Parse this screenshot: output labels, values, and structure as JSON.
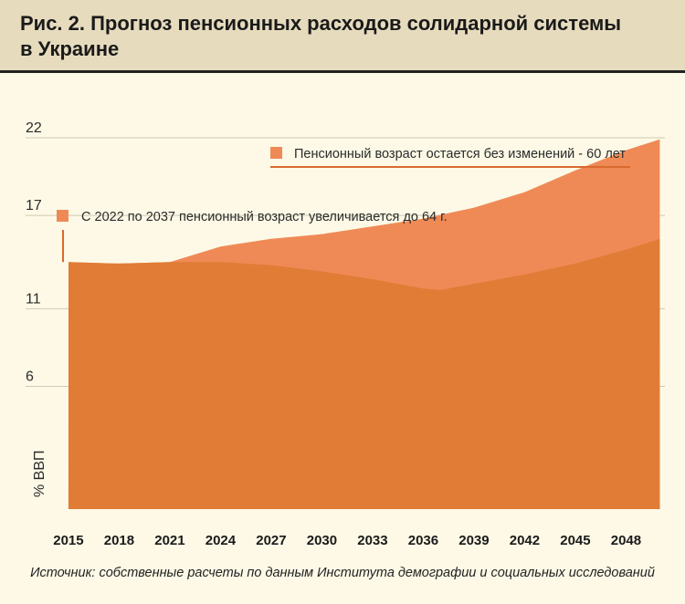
{
  "title": "Рис. 2. Прогноз пенсионных расходов солидарной системы в Украине",
  "source": "Источник: собственные расчеты по данным Института демографии и социальных исследований",
  "chart_data": {
    "type": "area",
    "ylabel": "% ВВП",
    "yticks": [
      6,
      11,
      17,
      22
    ],
    "xticks": [
      "2015",
      "2018",
      "2021",
      "2024",
      "2027",
      "2030",
      "2033",
      "2036",
      "2039",
      "2042",
      "2045",
      "2048"
    ],
    "xlim": [
      2014.3,
      2050.3
    ],
    "ylim": [
      -1.9,
      22
    ],
    "grid": true,
    "series": [
      {
        "name": "Пенсионный возраст остается без изменений - 60 лет",
        "color": "#ef8a56",
        "x": [
          2015,
          2018,
          2021,
          2024,
          2027,
          2030,
          2033,
          2036,
          2039,
          2042,
          2045,
          2048,
          2050
        ],
        "values": [
          14.0,
          13.9,
          14.0,
          15.0,
          15.5,
          15.8,
          16.3,
          16.8,
          17.5,
          18.5,
          19.9,
          21.2,
          21.9
        ]
      },
      {
        "name": "С 2022 по 2037 пенсионный возраст увеличивается до 64 г.",
        "color": "#e07c35",
        "x": [
          2015,
          2018,
          2021,
          2024,
          2027,
          2030,
          2033,
          2036,
          2037,
          2039,
          2042,
          2045,
          2048,
          2050
        ],
        "values": [
          14.0,
          13.9,
          14.0,
          14.0,
          13.8,
          13.4,
          12.9,
          12.3,
          12.2,
          12.6,
          13.2,
          13.9,
          14.8,
          15.5
        ]
      }
    ]
  },
  "colors": {
    "background": "#fdf9e6",
    "header": "#e6dbbd",
    "grid": "#cfc9b4",
    "dark": "#2b2b2b"
  }
}
